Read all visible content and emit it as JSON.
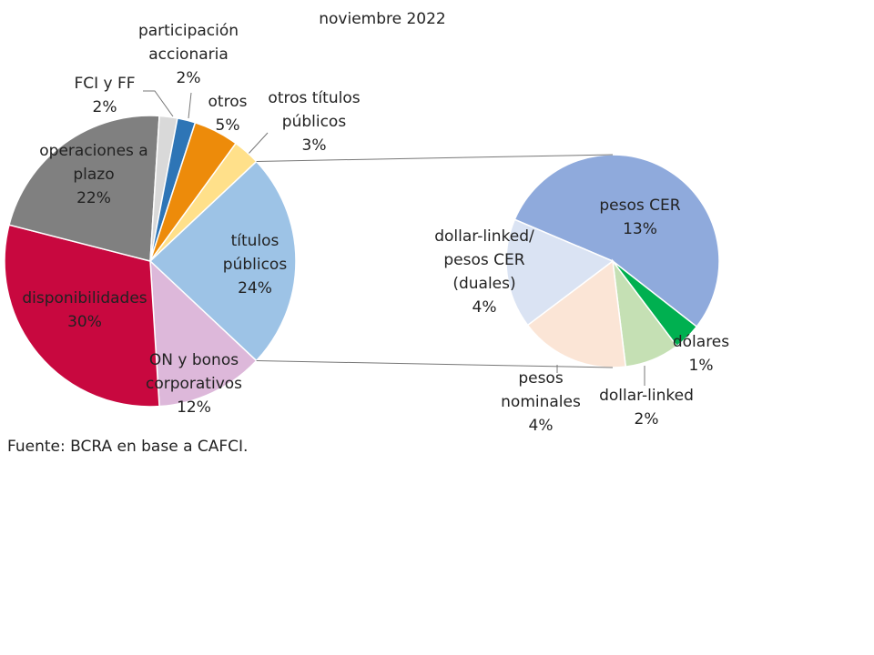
{
  "chart_data": [
    {
      "type": "pie",
      "title": "noviembre 2022",
      "categories": [
        "títulos\npúblicos",
        "ON y bonos\ncorporativos",
        "disponibilidades",
        "operaciones a\nplazo",
        "FCI y FF",
        "participación\naccionaria",
        "otros",
        "otros títulos\npúblicos"
      ],
      "values": [
        24,
        12,
        30,
        22,
        2,
        2,
        5,
        3
      ],
      "value_labels": [
        "24%",
        "12%",
        "30%",
        "22%",
        "2%",
        "2%",
        "5%",
        "3%"
      ],
      "colors": [
        "#9dc3e6",
        "#ddb8da",
        "#c8083f",
        "#808080",
        "#d9d9d9",
        "#2e75b6",
        "#ed8b0a",
        "#ffe08a"
      ]
    },
    {
      "type": "pie",
      "categories": [
        "pesos CER",
        "dólares",
        "dollar-linked",
        "pesos\nnominales",
        "dollar-linked/\npesos CER\n(duales)"
      ],
      "values": [
        13,
        1,
        2,
        4,
        4
      ],
      "value_labels": [
        "13%",
        "1%",
        "2%",
        "4%",
        "4%"
      ],
      "colors": [
        "#8faadc",
        "#00b050",
        "#c5e0b4",
        "#fbe5d6",
        "#dae3f3"
      ]
    }
  ],
  "source": "Fuente: BCRA en base a CAFCI."
}
